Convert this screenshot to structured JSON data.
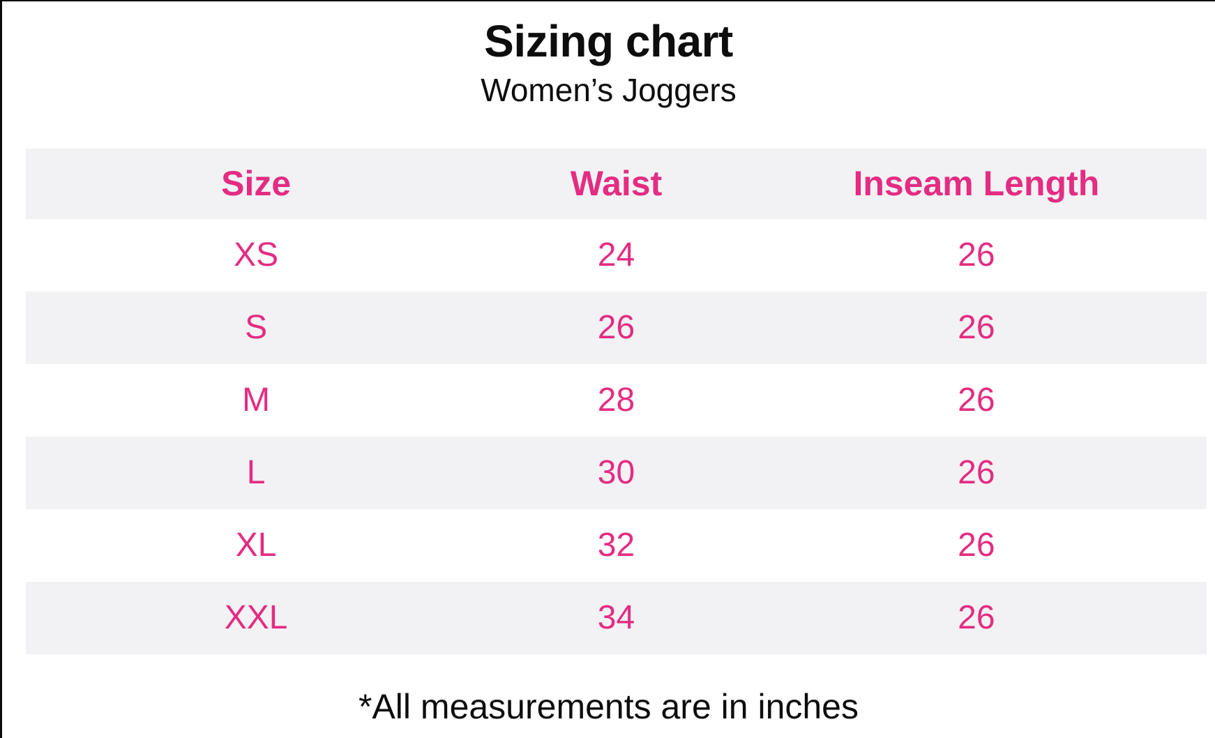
{
  "title": "Sizing chart",
  "subtitle": "Women’s Joggers",
  "footnote": "*All measurements are in inches",
  "colors": {
    "accent_pink": "#e42c82",
    "row_stripe": "#f2f2f4",
    "text_black": "#0d0d0d",
    "frame_border": "#0d0d0d"
  },
  "chart_data": {
    "type": "table",
    "title": "Sizing chart",
    "subtitle": "Women’s Joggers",
    "units_note": "*All measurements are in inches",
    "columns": [
      "Size",
      "Waist",
      "Inseam Length"
    ],
    "rows": [
      [
        "XS",
        "24",
        "26"
      ],
      [
        "S",
        "26",
        "26"
      ],
      [
        "M",
        "28",
        "26"
      ],
      [
        "L",
        "30",
        "26"
      ],
      [
        "XL",
        "32",
        "26"
      ],
      [
        "XXL",
        "34",
        "26"
      ]
    ]
  }
}
